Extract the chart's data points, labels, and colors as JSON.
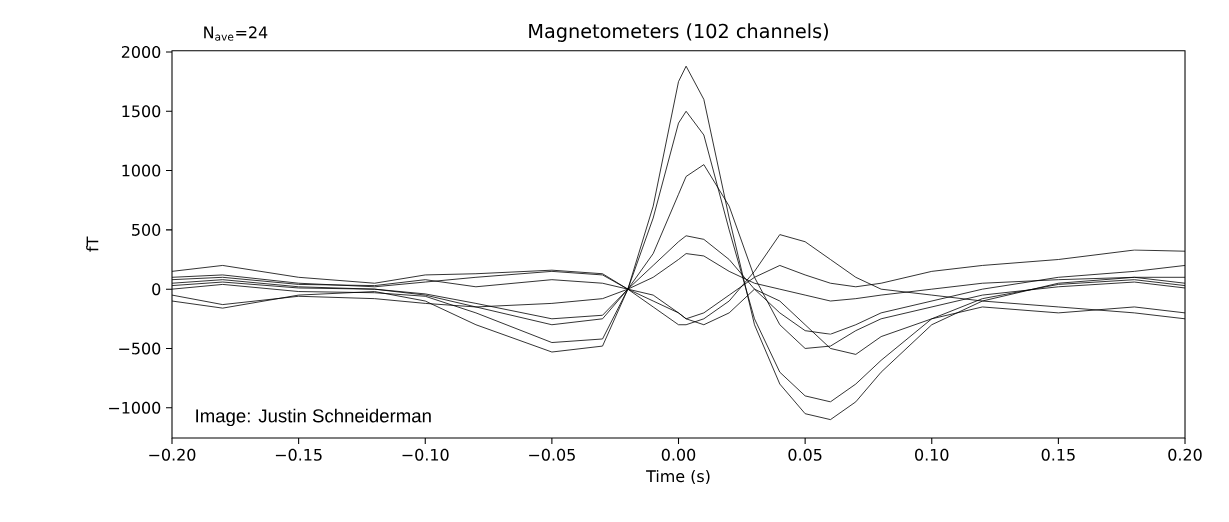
{
  "chart_data": {
    "type": "line",
    "title": "Magnetometers (102 channels)",
    "xlabel": "Time (s)",
    "ylabel": "fT",
    "annotations": [
      "N$_{ave}$=24",
      "Image: Justin Schneiderman"
    ],
    "x": [
      -0.2,
      -0.18,
      -0.15,
      -0.12,
      -0.1,
      -0.08,
      -0.05,
      -0.03,
      -0.02,
      -0.01,
      0,
      0.003,
      0.01,
      0.02,
      0.03,
      0.04,
      0.05,
      0.06,
      0.07,
      0.08,
      0.1,
      0.12,
      0.15,
      0.18,
      0.2
    ],
    "xlim": [
      -0.2,
      0.2
    ],
    "ylim": [
      -1255,
      2011
    ],
    "xticks": [
      {
        "value": -0.2,
        "label": "−0.20"
      },
      {
        "value": -0.15,
        "label": "−0.15"
      },
      {
        "value": -0.1,
        "label": "−0.10"
      },
      {
        "value": -0.05,
        "label": "−0.05"
      },
      {
        "value": 0,
        "label": "0.00"
      },
      {
        "value": 0.05,
        "label": "0.05"
      },
      {
        "value": 0.1,
        "label": "0.10"
      },
      {
        "value": 0.15,
        "label": "0.15"
      },
      {
        "value": 0.2,
        "label": "0.20"
      }
    ],
    "yticks": [
      {
        "value": -1000,
        "label": "−1000"
      },
      {
        "value": -500,
        "label": "−500"
      },
      0,
      500,
      1000,
      1500,
      2000
    ],
    "marker": "none",
    "line_style": "solid",
    "series": [
      {
        "color": "#000000",
        "values": [
          50,
          80,
          20,
          0,
          -50,
          -150,
          -300,
          -250,
          0,
          700,
          1750,
          1880,
          1600,
          600,
          -300,
          -800,
          -1050,
          -1100,
          -950,
          -700,
          -300,
          -100,
          50,
          100,
          50
        ]
      },
      {
        "color": "#000000",
        "values": [
          30,
          60,
          10,
          0,
          -40,
          -120,
          -250,
          -220,
          0,
          600,
          1400,
          1500,
          1300,
          500,
          -250,
          -700,
          -900,
          -950,
          -800,
          -600,
          -250,
          -80,
          40,
          80,
          30
        ]
      },
      {
        "color": "#000000",
        "values": [
          0,
          40,
          -20,
          -30,
          -60,
          -200,
          -450,
          -420,
          0,
          300,
          800,
          950,
          1050,
          700,
          100,
          -300,
          -500,
          -480,
          -350,
          -250,
          -150,
          -50,
          20,
          60,
          10
        ]
      },
      {
        "color": "#000000",
        "values": [
          -100,
          -160,
          -50,
          -20,
          -100,
          -300,
          -530,
          -480,
          0,
          -150,
          -300,
          -300,
          -250,
          -100,
          150,
          460,
          400,
          250,
          100,
          0,
          -50,
          -100,
          -150,
          -200,
          -250
        ]
      },
      {
        "color": "#000000",
        "values": [
          100,
          120,
          50,
          20,
          60,
          100,
          150,
          120,
          0,
          -100,
          -200,
          -250,
          -200,
          -50,
          100,
          200,
          120,
          50,
          20,
          50,
          150,
          200,
          250,
          330,
          320
        ]
      },
      {
        "color": "#000000",
        "values": [
          150,
          200,
          100,
          50,
          120,
          130,
          160,
          130,
          0,
          200,
          400,
          450,
          420,
          250,
          0,
          -200,
          -350,
          -380,
          -300,
          -200,
          -100,
          0,
          100,
          150,
          200
        ]
      },
      {
        "color": "#000000",
        "values": [
          -50,
          -130,
          -60,
          -80,
          -120,
          -150,
          -120,
          -80,
          0,
          -50,
          -200,
          -250,
          -300,
          -200,
          0,
          -100,
          -300,
          -500,
          -550,
          -400,
          -250,
          -150,
          -200,
          -150,
          -200
        ]
      },
      {
        "color": "#000000",
        "values": [
          80,
          100,
          40,
          30,
          80,
          20,
          80,
          50,
          0,
          100,
          250,
          300,
          280,
          150,
          50,
          0,
          -50,
          -100,
          -80,
          -50,
          0,
          50,
          80,
          100,
          100
        ]
      }
    ]
  }
}
